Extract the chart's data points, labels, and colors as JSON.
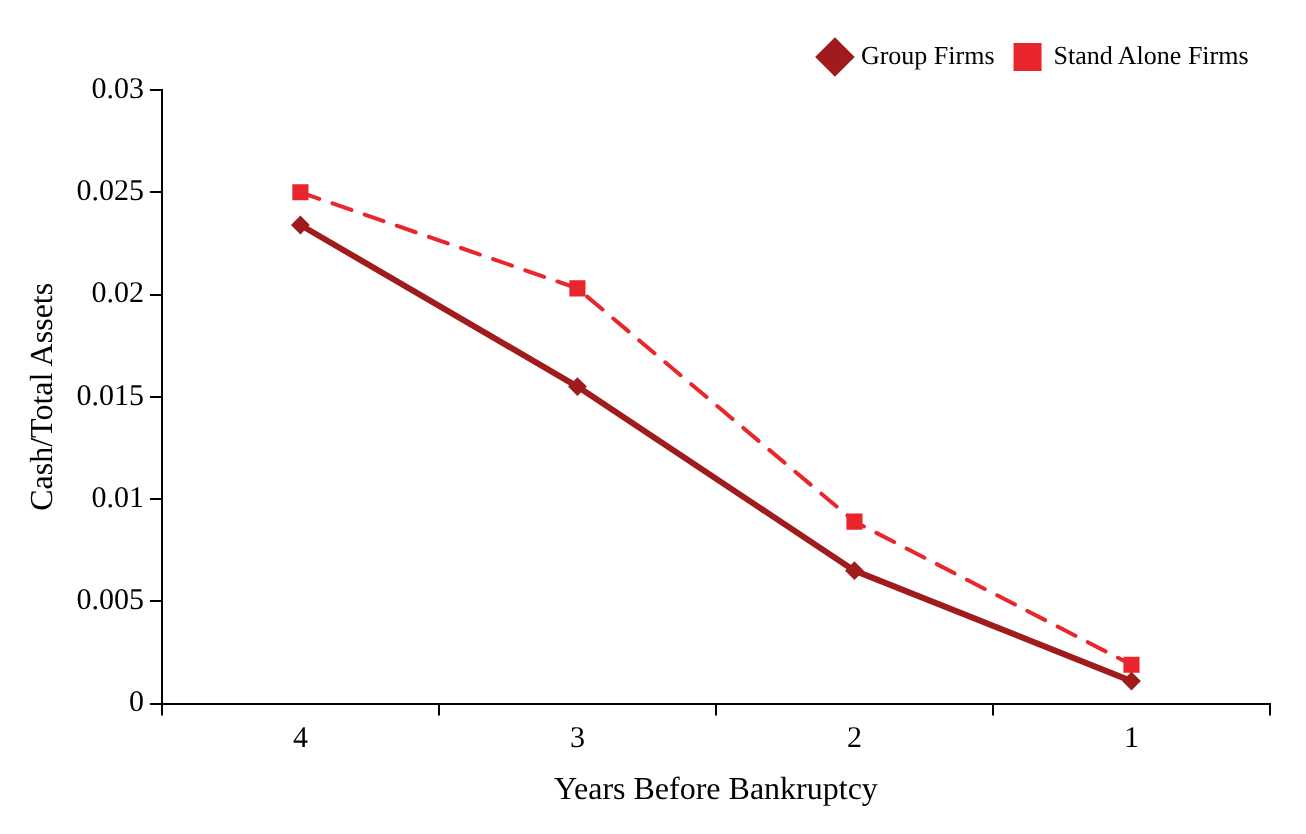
{
  "chart_data": {
    "type": "line",
    "xlabel": "Years Before Bankruptcy",
    "ylabel": "Cash/Total Assets",
    "categories": [
      "4",
      "3",
      "2",
      "1"
    ],
    "series": [
      {
        "name": "Group Firms",
        "color": "#a01c1c",
        "values": [
          0.0234,
          0.0155,
          0.0065,
          0.0011
        ],
        "marker": "diamond",
        "line_style": "solid"
      },
      {
        "name": "Stand Alone Firms",
        "color": "#e8262c",
        "values": [
          0.025,
          0.0203,
          0.0089,
          0.0019
        ],
        "marker": "square",
        "line_style": "dashed"
      }
    ],
    "ylim": [
      0,
      0.03
    ],
    "yticks": [
      0,
      0.005,
      0.01,
      0.015,
      0.02,
      0.025,
      0.03
    ],
    "grid": false,
    "legend": "top right"
  }
}
